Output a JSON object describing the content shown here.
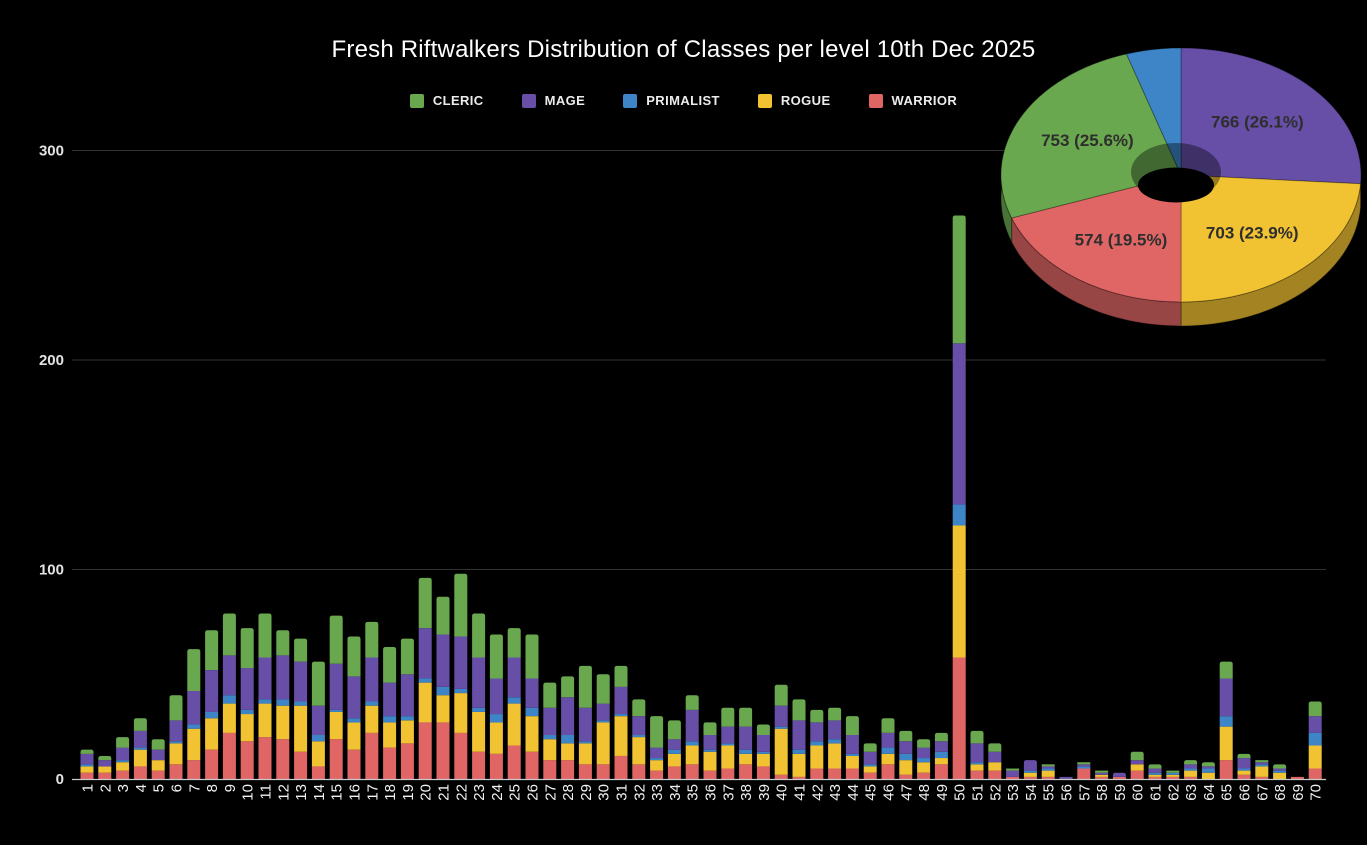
{
  "title": "Fresh Riftwalkers Distribution of Classes per level 10th Dec 2025",
  "colors": {
    "background": "#000000",
    "title_text": "#ffffff",
    "axis_line": "#c9c9c9",
    "gridline": "#323232",
    "tick_label": "#e3e3e3",
    "pie_label_text": "#2e2e2e",
    "cleric": "#6aa84f",
    "mage": "#674ea7",
    "primalist": "#3d85c6",
    "rogue": "#f1c232",
    "warrior": "#e06666"
  },
  "legend": [
    {
      "label": "CLERIC",
      "color": "#6aa84f"
    },
    {
      "label": "MAGE",
      "color": "#674ea7"
    },
    {
      "label": "PRIMALIST",
      "color": "#3d85c6"
    },
    {
      "label": "ROGUE",
      "color": "#f1c232"
    },
    {
      "label": "WARRIOR",
      "color": "#e06666"
    }
  ],
  "chart_data": [
    {
      "type": "bar",
      "stacked": true,
      "title": "Fresh Riftwalkers Distribution of Classes per level 10th Dec 2025",
      "xlabel": "",
      "ylabel": "",
      "ylim": [
        0,
        300
      ],
      "ytick_labels": [
        "0",
        "100",
        "200",
        "300"
      ],
      "grid": true,
      "legend_position": "top",
      "categories": [
        "1",
        "2",
        "3",
        "4",
        "5",
        "6",
        "7",
        "8",
        "9",
        "10",
        "11",
        "12",
        "13",
        "14",
        "15",
        "16",
        "17",
        "18",
        "19",
        "20",
        "21",
        "22",
        "23",
        "24",
        "25",
        "26",
        "27",
        "28",
        "29",
        "30",
        "31",
        "32",
        "33",
        "34",
        "35",
        "36",
        "37",
        "38",
        "39",
        "40",
        "41",
        "42",
        "43",
        "44",
        "45",
        "46",
        "47",
        "48",
        "49",
        "50",
        "51",
        "52",
        "53",
        "54",
        "55",
        "56",
        "57",
        "58",
        "59",
        "60",
        "61",
        "62",
        "63",
        "64",
        "65",
        "66",
        "67",
        "68",
        "69",
        "70"
      ],
      "stack_order_bottom_to_top": [
        "WARRIOR",
        "ROGUE",
        "PRIMALIST",
        "MAGE",
        "CLERIC"
      ],
      "series": [
        {
          "name": "WARRIOR",
          "color": "#e06666",
          "values": [
            3,
            3,
            4,
            6,
            4,
            7,
            9,
            14,
            22,
            18,
            20,
            19,
            13,
            6,
            19,
            14,
            22,
            15,
            17,
            27,
            27,
            22,
            13,
            12,
            16,
            13,
            9,
            9,
            7,
            7,
            11,
            7,
            4,
            6,
            7,
            4,
            5,
            7,
            6,
            2,
            1,
            5,
            5,
            5,
            3,
            7,
            2,
            3,
            7,
            58,
            4,
            4,
            1,
            1,
            1,
            0,
            5,
            1,
            1,
            4,
            1,
            1,
            1,
            0,
            9,
            2,
            1,
            0,
            1,
            5
          ]
        },
        {
          "name": "ROGUE",
          "color": "#f1c232",
          "values": [
            3,
            3,
            4,
            8,
            5,
            10,
            15,
            15,
            14,
            13,
            16,
            16,
            22,
            12,
            13,
            13,
            13,
            12,
            11,
            19,
            13,
            19,
            19,
            15,
            20,
            17,
            10,
            8,
            10,
            20,
            19,
            13,
            5,
            6,
            9,
            9,
            11,
            5,
            6,
            22,
            11,
            11,
            12,
            6,
            3,
            5,
            7,
            5,
            3,
            63,
            3,
            4,
            0,
            2,
            3,
            0,
            0,
            1,
            0,
            3,
            1,
            1,
            3,
            3,
            16,
            2,
            5,
            3,
            0,
            11
          ]
        },
        {
          "name": "PRIMALIST",
          "color": "#3d85c6",
          "values": [
            1,
            0,
            1,
            1,
            0,
            1,
            2,
            3,
            4,
            2,
            2,
            3,
            2,
            3,
            1,
            2,
            2,
            3,
            2,
            2,
            4,
            2,
            2,
            4,
            3,
            4,
            2,
            4,
            1,
            1,
            1,
            1,
            1,
            2,
            2,
            1,
            1,
            2,
            1,
            1,
            2,
            2,
            2,
            1,
            1,
            3,
            3,
            2,
            3,
            10,
            1,
            0,
            0,
            1,
            1,
            0,
            1,
            0,
            0,
            0,
            1,
            1,
            1,
            2,
            5,
            1,
            1,
            1,
            0,
            6
          ]
        },
        {
          "name": "MAGE",
          "color": "#674ea7",
          "values": [
            5,
            3,
            6,
            8,
            5,
            10,
            16,
            20,
            19,
            20,
            20,
            21,
            19,
            14,
            22,
            20,
            21,
            16,
            20,
            24,
            25,
            25,
            24,
            17,
            19,
            14,
            13,
            18,
            16,
            8,
            13,
            9,
            5,
            5,
            15,
            7,
            8,
            11,
            8,
            10,
            14,
            9,
            9,
            9,
            6,
            7,
            6,
            5,
            5,
            77,
            9,
            5,
            3,
            5,
            1,
            1,
            1,
            1,
            2,
            2,
            2,
            0,
            2,
            1,
            18,
            5,
            1,
            1,
            0,
            8
          ]
        },
        {
          "name": "CLERIC",
          "color": "#6aa84f",
          "values": [
            2,
            2,
            5,
            6,
            5,
            12,
            20,
            19,
            20,
            19,
            21,
            12,
            11,
            21,
            23,
            19,
            17,
            17,
            17,
            24,
            18,
            30,
            21,
            21,
            14,
            21,
            12,
            10,
            20,
            14,
            10,
            8,
            15,
            9,
            7,
            6,
            9,
            9,
            5,
            10,
            10,
            6,
            6,
            9,
            4,
            7,
            5,
            4,
            4,
            61,
            6,
            4,
            1,
            0,
            1,
            0,
            1,
            1,
            0,
            4,
            2,
            1,
            2,
            2,
            8,
            2,
            1,
            2,
            0,
            7
          ]
        }
      ]
    },
    {
      "type": "pie",
      "donut": true,
      "three_d": true,
      "direction": "clockwise",
      "start_angle_deg": -90,
      "slices": [
        {
          "name": "MAGE",
          "value": 766,
          "pct": 26.1,
          "label": "766 (26.1%)",
          "color": "#674ea7"
        },
        {
          "name": "ROGUE",
          "value": 703,
          "pct": 23.9,
          "label": "703 (23.9%)",
          "color": "#f1c232"
        },
        {
          "name": "WARRIOR",
          "value": 574,
          "pct": 19.5,
          "label": "574 (19.5%)",
          "color": "#e06666"
        },
        {
          "name": "CLERIC",
          "value": 753,
          "pct": 25.6,
          "label": "753 (25.6%)",
          "color": "#6aa84f"
        },
        {
          "name": "PRIMALIST",
          "value": 144,
          "pct": 4.9,
          "label": null,
          "color": "#3d85c6"
        }
      ]
    }
  ]
}
